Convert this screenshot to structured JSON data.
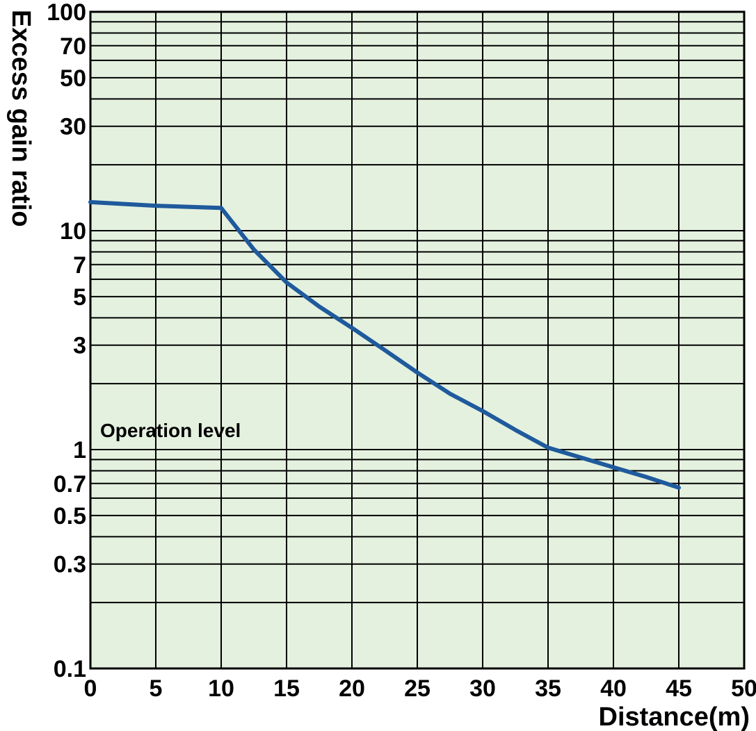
{
  "chart_data": {
    "type": "line",
    "xlabel": "Distance(m)",
    "ylabel": "Excess gain ratio",
    "xlim": [
      0,
      50
    ],
    "ylim": [
      0.1,
      100
    ],
    "yscale": "log",
    "grid": true,
    "x_ticks": [
      "0",
      "5",
      "10",
      "15",
      "20",
      "25",
      "30",
      "35",
      "40",
      "45",
      "50"
    ],
    "y_ticks": [
      {
        "value": 100,
        "label": "100"
      },
      {
        "value": 70,
        "label": "70"
      },
      {
        "value": 50,
        "label": "50"
      },
      {
        "value": 30,
        "label": "30"
      },
      {
        "value": 10,
        "label": "10"
      },
      {
        "value": 7,
        "label": "7"
      },
      {
        "value": 5,
        "label": "5"
      },
      {
        "value": 3,
        "label": "3"
      },
      {
        "value": 1,
        "label": "1"
      },
      {
        "value": 0.7,
        "label": "0.7"
      },
      {
        "value": 0.5,
        "label": "0.5"
      },
      {
        "value": 0.3,
        "label": "0.3"
      },
      {
        "value": 0.1,
        "label": "0.1"
      }
    ],
    "y_gridlines": [
      0.1,
      0.2,
      0.3,
      0.4,
      0.5,
      0.6,
      0.7,
      0.8,
      0.9,
      1,
      2,
      3,
      4,
      5,
      6,
      7,
      8,
      9,
      10,
      20,
      30,
      40,
      50,
      60,
      70,
      80,
      90,
      100
    ],
    "x_gridlines": [
      0,
      5,
      10,
      15,
      20,
      25,
      30,
      35,
      40,
      45,
      50
    ],
    "annotations": [
      {
        "text": "Operation level",
        "x": 0.8,
        "y": 1.0
      }
    ],
    "series": [
      {
        "color": "#1f5a9c",
        "x": [
          0,
          5,
          10,
          12.5,
          15,
          17.5,
          20,
          22.5,
          25,
          27.5,
          30,
          32.5,
          35,
          37.5,
          40,
          42.5,
          45
        ],
        "y": [
          13.5,
          13.0,
          12.7,
          8.2,
          5.8,
          4.5,
          3.6,
          2.85,
          2.25,
          1.8,
          1.5,
          1.23,
          1.02,
          0.92,
          0.83,
          0.75,
          0.67
        ]
      }
    ]
  },
  "colors": {
    "plot_background": "#e4f1df",
    "grid": "#000000",
    "line": "#1f5a9c"
  }
}
